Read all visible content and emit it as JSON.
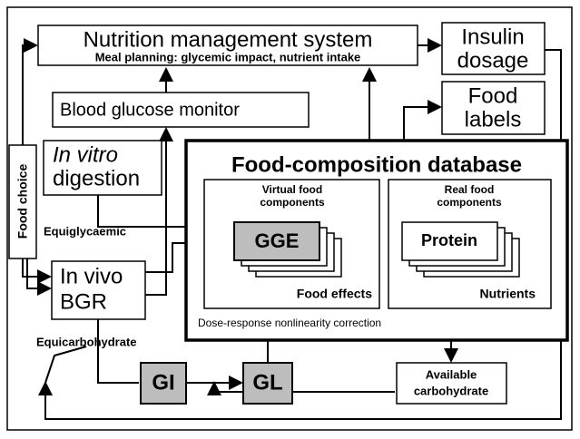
{
  "diagram": {
    "nutrition_system": {
      "title": "Nutrition management system",
      "subtitle": "Meal planning: glycemic impact, nutrient intake"
    },
    "insulin": {
      "lines": [
        "Insulin",
        "dosage"
      ]
    },
    "food_labels": {
      "lines": [
        "Food",
        "labels"
      ]
    },
    "glucose_monitor": {
      "label": "Blood glucose monitor"
    },
    "in_vitro": {
      "lines": [
        "In vitro",
        "digestion"
      ]
    },
    "food_choice": {
      "label": "Food choice"
    },
    "database": {
      "title": "Food-composition database",
      "virtual": {
        "lines": [
          "Virtual food",
          "components"
        ],
        "item": "GGE",
        "footer": "Food effects"
      },
      "real": {
        "lines": [
          "Real food",
          "components"
        ],
        "item": "Protein",
        "footer": "Nutrients"
      }
    },
    "equiglycaemic": "Equiglycaemic",
    "in_vivo": {
      "lines": [
        "In vivo",
        "BGR"
      ]
    },
    "equicarbohydrate": "Equicarbohydrate",
    "dose_response": "Dose-response nonlinearity correction",
    "gi": "GI",
    "gl": "GL",
    "available_carb": {
      "lines": [
        "Available",
        "carbohydrate"
      ]
    }
  }
}
